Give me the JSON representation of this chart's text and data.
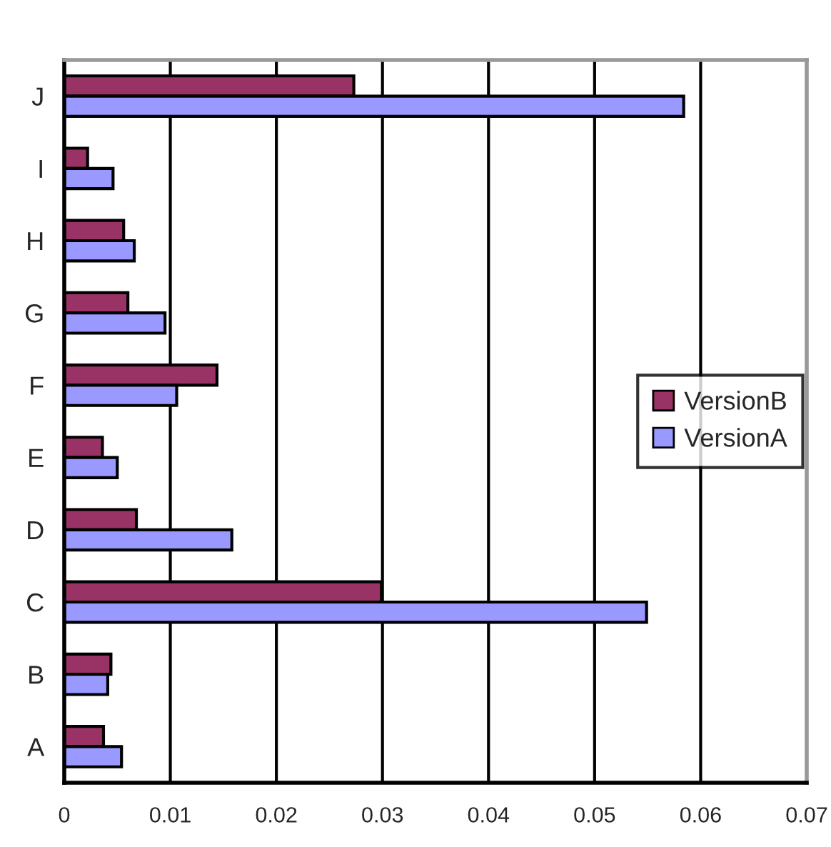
{
  "chart_data": {
    "type": "bar",
    "orientation": "horizontal",
    "categories": [
      "J",
      "I",
      "H",
      "G",
      "F",
      "E",
      "D",
      "C",
      "B",
      "A"
    ],
    "series": [
      {
        "name": "VersionB",
        "color": "#993366",
        "values": [
          0.0273,
          0.0022,
          0.0056,
          0.006,
          0.0144,
          0.0036,
          0.0068,
          0.0299,
          0.0044,
          0.0037
        ]
      },
      {
        "name": "VersionA",
        "color": "#9999ff",
        "values": [
          0.0584,
          0.0046,
          0.0066,
          0.0095,
          0.0106,
          0.005,
          0.0158,
          0.0549,
          0.0041,
          0.0054
        ]
      }
    ],
    "xlim": [
      0,
      0.07
    ],
    "xticks": [
      0,
      0.01,
      0.02,
      0.03,
      0.04,
      0.05,
      0.06,
      0.07
    ],
    "grid": "x",
    "legend": "right"
  }
}
